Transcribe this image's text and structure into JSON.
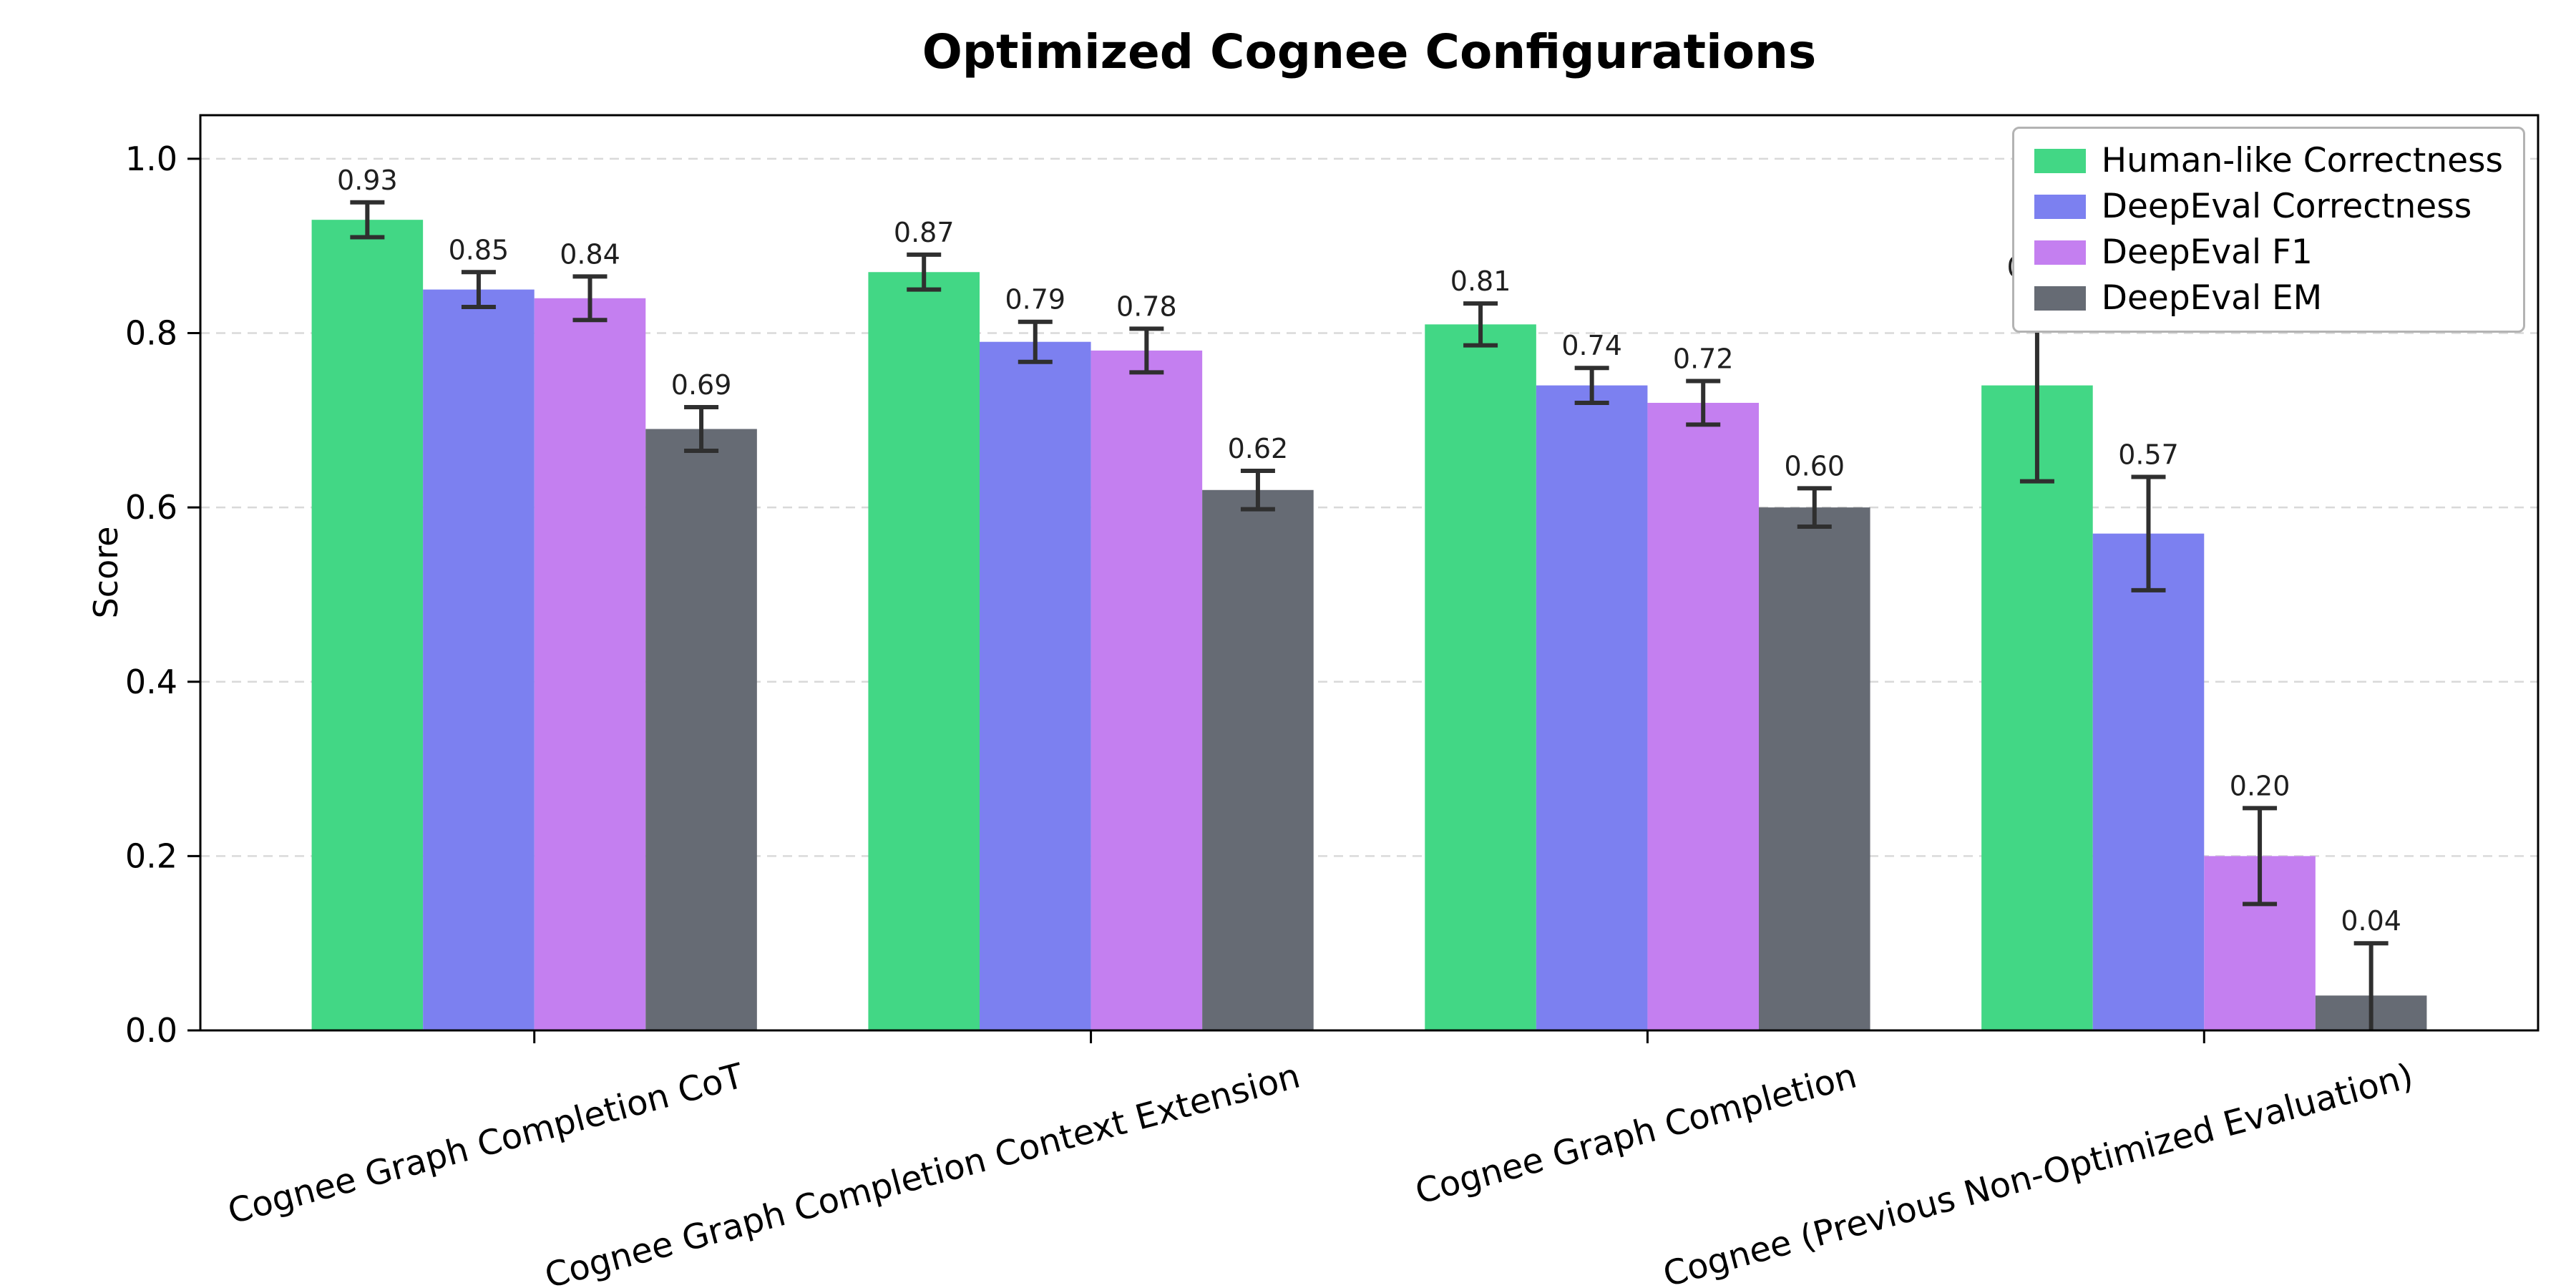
{
  "chart_data": {
    "type": "bar",
    "title": "Optimized Cognee Configurations",
    "ylabel": "Score",
    "xlabel": "",
    "categories": [
      "Cognee Graph Completion CoT",
      "Cognee Graph Completion Context Extension",
      "Cognee Graph Completion",
      "Cognee (Previous Non-Optimized Evaluation)"
    ],
    "series": [
      {
        "name": "Human-like Correctness",
        "color": "#42d785",
        "values": [
          0.93,
          0.87,
          0.81,
          0.74
        ],
        "errors": [
          0.02,
          0.02,
          0.024,
          0.11
        ]
      },
      {
        "name": "DeepEval Correctness",
        "color": "#7c80f0",
        "values": [
          0.85,
          0.79,
          0.74,
          0.57
        ],
        "errors": [
          0.02,
          0.023,
          0.02,
          0.065
        ]
      },
      {
        "name": "DeepEval F1",
        "color": "#c47ff0",
        "values": [
          0.84,
          0.78,
          0.72,
          0.2
        ],
        "errors": [
          0.025,
          0.025,
          0.025,
          0.055
        ]
      },
      {
        "name": "DeepEval EM",
        "color": "#666b74",
        "values": [
          0.69,
          0.62,
          0.6,
          0.04
        ],
        "errors": [
          0.025,
          0.022,
          0.022,
          0.06
        ]
      }
    ],
    "ylim": [
      0,
      1.05
    ],
    "yticks": [
      0.0,
      0.2,
      0.4,
      0.6,
      0.8,
      1.0
    ],
    "grid": "dashed-horizontal",
    "legend_position": "upper-right",
    "colors": {
      "background": "#ffffff",
      "grid": "#d9d9d9",
      "axis": "#000000",
      "error_bar": "#2f2f2f",
      "value_label": "#1f1f1f",
      "tick_label": "#000000",
      "legend_border": "#b3b3b3"
    }
  }
}
